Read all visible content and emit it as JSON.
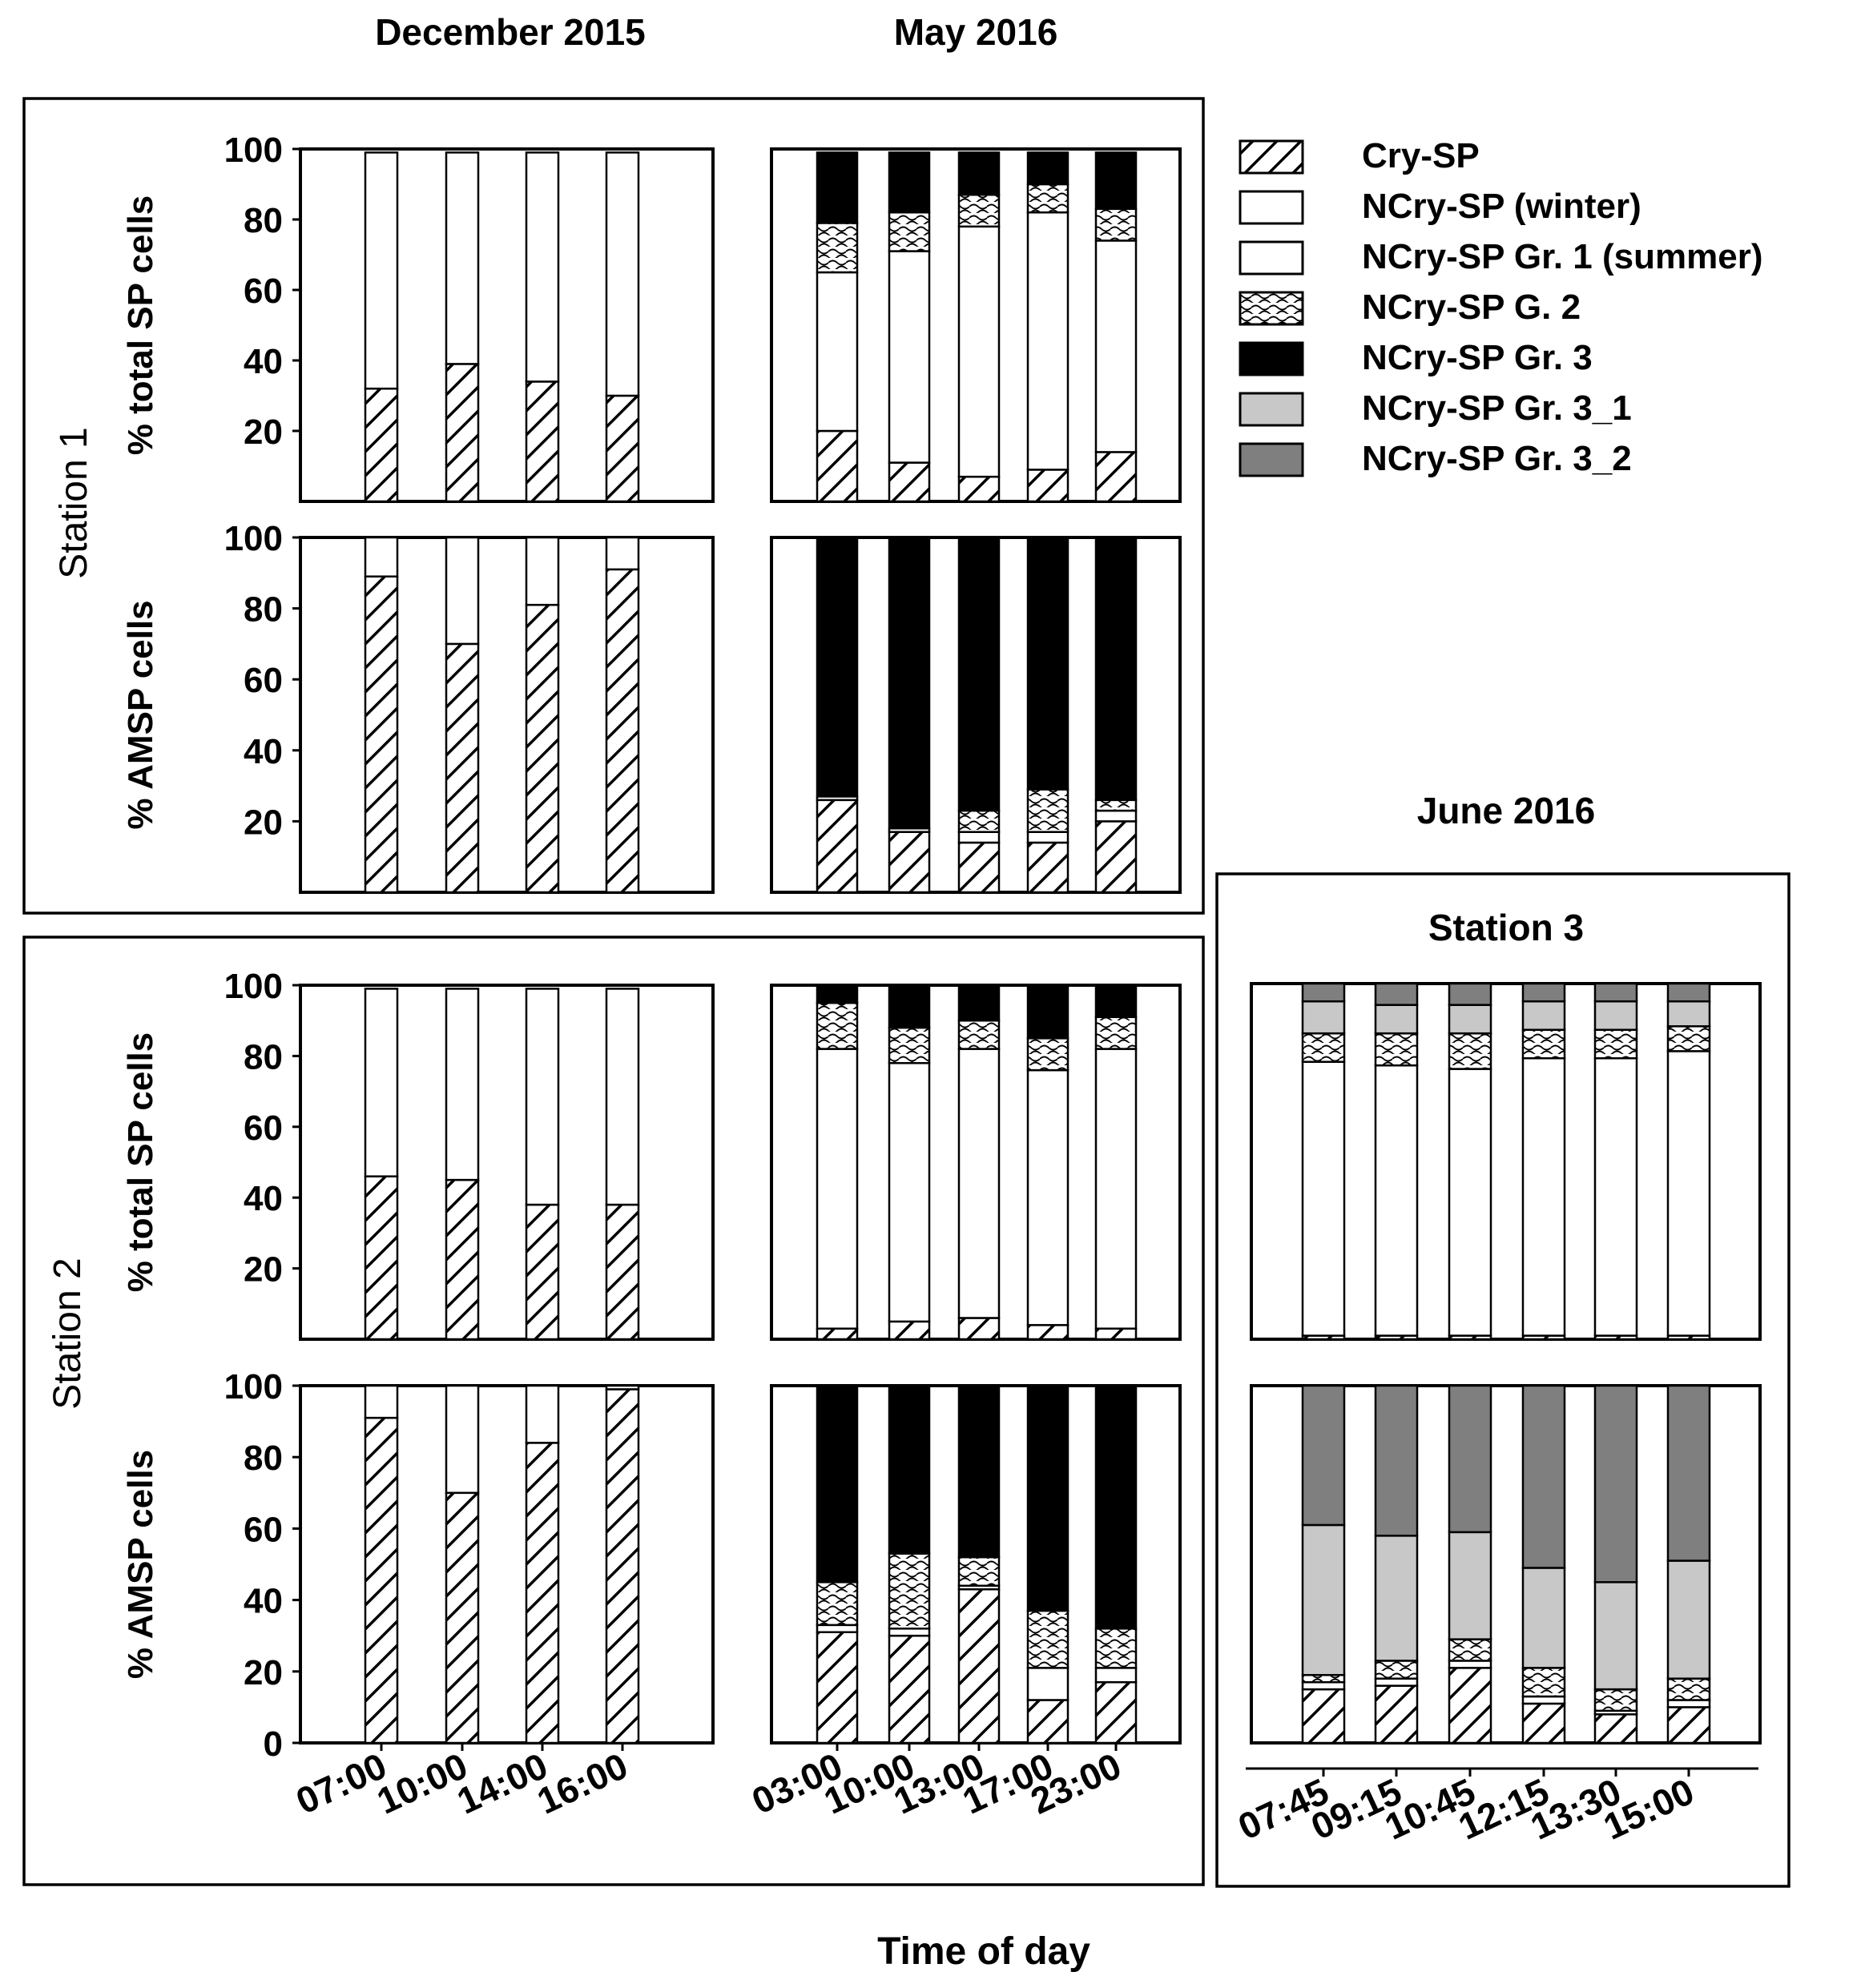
{
  "column_titles": {
    "dec2015": "December 2015",
    "may2016": "May 2016",
    "jun2016": "June 2016"
  },
  "row_labels": {
    "station1": "Station 1",
    "station2": "Station 2",
    "station3": "Station 3"
  },
  "x_axis_label": "Time of day",
  "legend": [
    {
      "label": "Cry-SP",
      "pattern": "hatch"
    },
    {
      "label": "NCry-SP (winter)",
      "pattern": "white"
    },
    {
      "label": "NCry-SP Gr. 1 (summer)",
      "pattern": "white"
    },
    {
      "label": "NCry-SP G. 2",
      "pattern": "wave"
    },
    {
      "label": "NCry-SP Gr. 3",
      "pattern": "black"
    },
    {
      "label": "NCry-SP Gr. 3_1",
      "pattern": "lightgray"
    },
    {
      "label": "NCry-SP Gr. 3_2",
      "pattern": "darkgray"
    }
  ],
  "colors": {
    "black": "#000000",
    "lightgray": "#c8c8c8",
    "darkgray": "#7f7f7f",
    "white": "#ffffff"
  },
  "chart_data": [
    {
      "type": "bar",
      "stacked": true,
      "id": "s1-dec-total",
      "ylabel": "% total SP cells",
      "ylim": [
        0,
        100
      ],
      "yticks": [
        20,
        40,
        60,
        80,
        100
      ],
      "categories": [
        "07:00",
        "10:00",
        "14:00",
        "16:00"
      ],
      "series": [
        {
          "name": "Cry-SP",
          "pattern": "hatch",
          "values": [
            32,
            39,
            34,
            30
          ]
        },
        {
          "name": "NCry-SP (winter)",
          "pattern": "white",
          "values": [
            67,
            60,
            65,
            69
          ]
        }
      ]
    },
    {
      "type": "bar",
      "stacked": true,
      "id": "s1-may-total",
      "ylim": [
        0,
        100
      ],
      "categories": [
        "03:00",
        "10:00",
        "13:00",
        "17:00",
        "23:00"
      ],
      "series": [
        {
          "name": "Cry-SP",
          "pattern": "hatch",
          "values": [
            20,
            11,
            7,
            9,
            14
          ]
        },
        {
          "name": "NCry-SP Gr. 1 (summer)",
          "pattern": "white",
          "values": [
            45,
            60,
            71,
            73,
            60
          ]
        },
        {
          "name": "NCry-SP G. 2",
          "pattern": "wave",
          "values": [
            14,
            11,
            9,
            8,
            9
          ]
        },
        {
          "name": "NCry-SP Gr. 3",
          "pattern": "black",
          "values": [
            20,
            17,
            12,
            9,
            16
          ]
        }
      ]
    },
    {
      "type": "bar",
      "stacked": true,
      "id": "s1-dec-amsp",
      "ylabel": "% AMSP cells",
      "ylim": [
        0,
        100
      ],
      "yticks": [
        20,
        40,
        60,
        80,
        100
      ],
      "categories": [
        "07:00",
        "10:00",
        "14:00",
        "16:00"
      ],
      "series": [
        {
          "name": "Cry-SP",
          "pattern": "hatch",
          "values": [
            89,
            70,
            81,
            91
          ]
        },
        {
          "name": "NCry-SP (winter)",
          "pattern": "white",
          "values": [
            11,
            30,
            19,
            9
          ]
        }
      ]
    },
    {
      "type": "bar",
      "stacked": true,
      "id": "s1-may-amsp",
      "ylim": [
        0,
        100
      ],
      "categories": [
        "03:00",
        "10:00",
        "13:00",
        "17:00",
        "23:00"
      ],
      "series": [
        {
          "name": "Cry-SP",
          "pattern": "hatch",
          "values": [
            26,
            17,
            14,
            14,
            20
          ]
        },
        {
          "name": "NCry-SP Gr. 1 (summer)",
          "pattern": "white",
          "values": [
            1,
            1,
            3,
            3,
            3
          ]
        },
        {
          "name": "NCry-SP G. 2",
          "pattern": "wave",
          "values": [
            0,
            0,
            6,
            12,
            3
          ]
        },
        {
          "name": "NCry-SP Gr. 3",
          "pattern": "black",
          "values": [
            73,
            82,
            77,
            71,
            74
          ]
        }
      ]
    },
    {
      "type": "bar",
      "stacked": true,
      "id": "s2-dec-total",
      "ylabel": "% total SP cells",
      "ylim": [
        0,
        100
      ],
      "yticks": [
        20,
        40,
        60,
        80,
        100
      ],
      "categories": [
        "07:00",
        "10:00",
        "14:00",
        "16:00"
      ],
      "series": [
        {
          "name": "Cry-SP",
          "pattern": "hatch",
          "values": [
            46,
            45,
            38,
            38
          ]
        },
        {
          "name": "NCry-SP (winter)",
          "pattern": "white",
          "values": [
            53,
            54,
            61,
            61
          ]
        }
      ]
    },
    {
      "type": "bar",
      "stacked": true,
      "id": "s2-may-total",
      "ylim": [
        0,
        100
      ],
      "categories": [
        "03:00",
        "10:00",
        "13:00",
        "17:00",
        "23:00"
      ],
      "series": [
        {
          "name": "Cry-SP",
          "pattern": "hatch",
          "values": [
            3,
            5,
            6,
            4,
            3
          ]
        },
        {
          "name": "NCry-SP Gr. 1 (summer)",
          "pattern": "white",
          "values": [
            79,
            73,
            76,
            72,
            79
          ]
        },
        {
          "name": "NCry-SP G. 2",
          "pattern": "wave",
          "values": [
            13,
            10,
            8,
            9,
            9
          ]
        },
        {
          "name": "NCry-SP Gr. 3",
          "pattern": "black",
          "values": [
            5,
            12,
            10,
            15,
            9
          ]
        }
      ]
    },
    {
      "type": "bar",
      "stacked": true,
      "id": "s2-dec-amsp",
      "ylabel": "% AMSP cells",
      "ylim": [
        0,
        100
      ],
      "yticks": [
        0,
        20,
        40,
        60,
        80,
        100
      ],
      "categories": [
        "07:00",
        "10:00",
        "14:00",
        "16:00"
      ],
      "series": [
        {
          "name": "Cry-SP",
          "pattern": "hatch",
          "values": [
            91,
            70,
            84,
            99
          ]
        },
        {
          "name": "NCry-SP (winter)",
          "pattern": "white",
          "values": [
            9,
            30,
            16,
            1
          ]
        }
      ]
    },
    {
      "type": "bar",
      "stacked": true,
      "id": "s2-may-amsp",
      "ylim": [
        0,
        100
      ],
      "categories": [
        "03:00",
        "10:00",
        "13:00",
        "17:00",
        "23:00"
      ],
      "series": [
        {
          "name": "Cry-SP",
          "pattern": "hatch",
          "values": [
            31,
            30,
            43,
            12,
            17
          ]
        },
        {
          "name": "NCry-SP Gr. 1 (summer)",
          "pattern": "white",
          "values": [
            2,
            2,
            1,
            9,
            4
          ]
        },
        {
          "name": "NCry-SP G. 2",
          "pattern": "wave",
          "values": [
            12,
            21,
            8,
            16,
            11
          ]
        },
        {
          "name": "NCry-SP Gr. 3",
          "pattern": "black",
          "values": [
            55,
            47,
            48,
            63,
            68
          ]
        }
      ]
    },
    {
      "type": "bar",
      "stacked": true,
      "id": "s3-jun-total",
      "ylim": [
        0,
        100
      ],
      "categories": [
        "07:45",
        "09:15",
        "10:45",
        "12:15",
        "13:30",
        "15:00"
      ],
      "series": [
        {
          "name": "Cry-SP",
          "pattern": "hatch",
          "values": [
            1,
            1,
            1,
            1,
            1,
            1
          ]
        },
        {
          "name": "NCry-SP Gr. 1 (summer)",
          "pattern": "white",
          "values": [
            77,
            76,
            75,
            78,
            78,
            80
          ]
        },
        {
          "name": "NCry-SP G. 2",
          "pattern": "wave",
          "values": [
            8,
            9,
            10,
            8,
            8,
            7
          ]
        },
        {
          "name": "NCry-SP Gr. 3_1",
          "pattern": "lightgray",
          "values": [
            9,
            8,
            8,
            8,
            8,
            7
          ]
        },
        {
          "name": "NCry-SP Gr. 3_2",
          "pattern": "darkgray",
          "values": [
            5,
            6,
            6,
            5,
            5,
            5
          ]
        }
      ]
    },
    {
      "type": "bar",
      "stacked": true,
      "id": "s3-jun-amsp",
      "ylim": [
        0,
        100
      ],
      "categories": [
        "07:45",
        "09:15",
        "10:45",
        "12:15",
        "13:30",
        "15:00"
      ],
      "series": [
        {
          "name": "Cry-SP",
          "pattern": "hatch",
          "values": [
            15,
            16,
            21,
            11,
            8,
            10
          ]
        },
        {
          "name": "NCry-SP Gr. 1 (summer)",
          "pattern": "white",
          "values": [
            2,
            2,
            2,
            2,
            1,
            2
          ]
        },
        {
          "name": "NCry-SP G. 2",
          "pattern": "wave",
          "values": [
            2,
            5,
            6,
            8,
            6,
            6
          ]
        },
        {
          "name": "NCry-SP Gr. 3_1",
          "pattern": "lightgray",
          "values": [
            42,
            35,
            30,
            28,
            30,
            33
          ]
        },
        {
          "name": "NCry-SP Gr. 3_2",
          "pattern": "darkgray",
          "values": [
            39,
            42,
            41,
            51,
            55,
            49
          ]
        }
      ]
    }
  ]
}
